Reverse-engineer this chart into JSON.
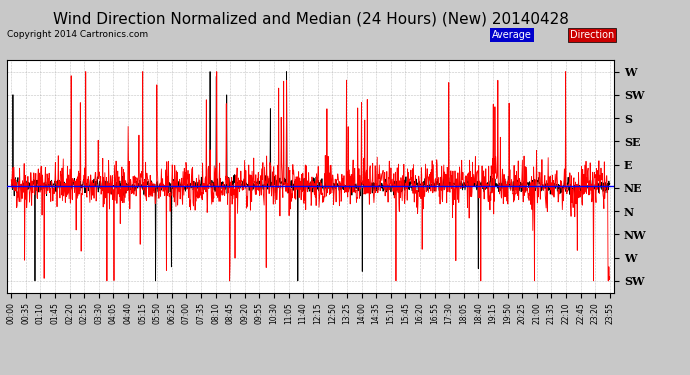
{
  "title": "Wind Direction Normalized and Median (24 Hours) (New) 20140428",
  "copyright": "Copyright 2014 Cartronics.com",
  "ytick_labels": [
    "W",
    "SW",
    "S",
    "SE",
    "E",
    "NE",
    "N",
    "NW",
    "W",
    "SW"
  ],
  "ytick_values": [
    9,
    8,
    7,
    6,
    5,
    4,
    3,
    2,
    1,
    0
  ],
  "median_line_y": 4.1,
  "background_color": "#c8c8c8",
  "plot_bg_color": "#ffffff",
  "grid_color": "#999999",
  "red_line_color": "#ff0000",
  "black_line_color": "#000000",
  "blue_line_color": "#0000ff",
  "title_fontsize": 11,
  "legend_avg_color": "#0000cc",
  "legend_dir_color": "#cc0000",
  "xtick_labels": [
    "00:00",
    "00:35",
    "01:10",
    "01:45",
    "02:20",
    "02:55",
    "03:30",
    "04:05",
    "04:40",
    "05:15",
    "05:50",
    "06:25",
    "07:00",
    "07:35",
    "08:10",
    "08:45",
    "09:20",
    "09:55",
    "10:30",
    "11:05",
    "11:40",
    "12:15",
    "12:50",
    "13:25",
    "14:00",
    "14:35",
    "15:10",
    "15:45",
    "16:20",
    "16:55",
    "17:30",
    "18:05",
    "18:40",
    "19:15",
    "19:50",
    "20:25",
    "21:00",
    "21:35",
    "22:10",
    "22:45",
    "23:20",
    "23:55"
  ],
  "num_points": 1440,
  "seed": 42
}
